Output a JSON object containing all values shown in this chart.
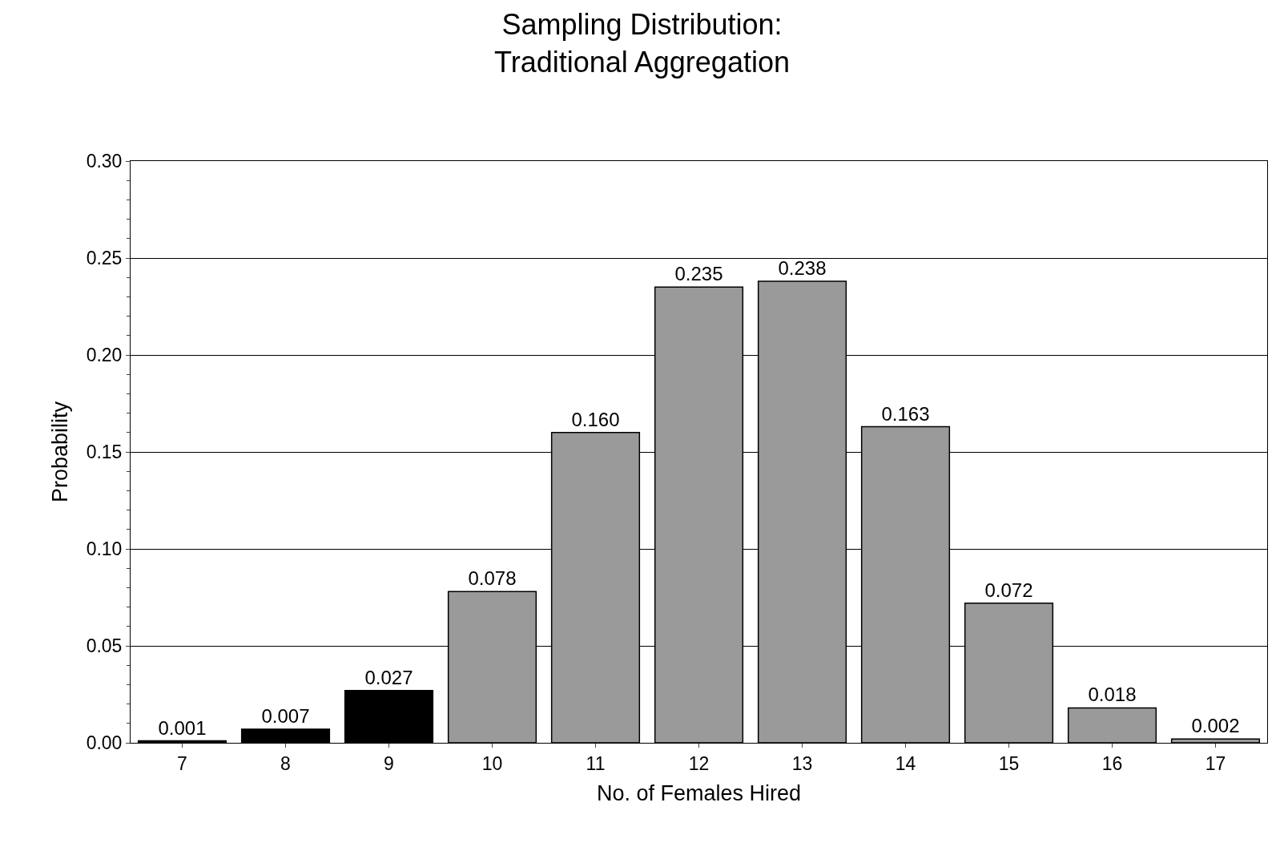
{
  "chart_data": {
    "type": "bar",
    "title": "Sampling Distribution:\nTraditional Aggregation",
    "xlabel": "No. of Females Hired",
    "ylabel": "Probability",
    "categories": [
      "7",
      "8",
      "9",
      "10",
      "11",
      "12",
      "13",
      "14",
      "15",
      "16",
      "17"
    ],
    "values": [
      0.001,
      0.007,
      0.027,
      0.078,
      0.16,
      0.235,
      0.238,
      0.163,
      0.072,
      0.018,
      0.002
    ],
    "value_labels": [
      "0.001",
      "0.007",
      "0.027",
      "0.078",
      "0.160",
      "0.235",
      "0.238",
      "0.163",
      "0.072",
      "0.018",
      "0.002"
    ],
    "colors": [
      "#000000",
      "#000000",
      "#000000",
      "#9a9a9a",
      "#9a9a9a",
      "#9a9a9a",
      "#9a9a9a",
      "#9a9a9a",
      "#9a9a9a",
      "#9a9a9a",
      "#9a9a9a"
    ],
    "ylim": [
      0,
      0.3
    ],
    "yticks": [
      "0.00",
      "0.05",
      "0.10",
      "0.15",
      "0.20",
      "0.25",
      "0.30"
    ],
    "grid": "y",
    "legend": false
  }
}
